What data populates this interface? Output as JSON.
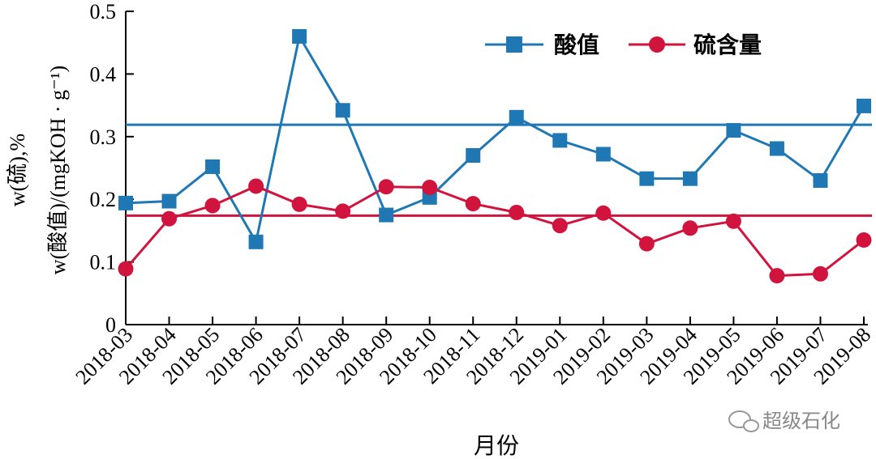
{
  "chart_data": {
    "type": "line",
    "categories": [
      "2018-03",
      "2018-04",
      "2018-05",
      "2018-06",
      "2018-07",
      "2018-08",
      "2018-09",
      "2018-10",
      "2018-11",
      "2018-12",
      "2019-01",
      "2019-02",
      "2019-03",
      "2019-04",
      "2019-05",
      "2019-06",
      "2019-07",
      "2019-08"
    ],
    "series": [
      {
        "name": "酸值",
        "color": "#1f78b4",
        "marker": "square",
        "values": [
          0.194,
          0.197,
          0.252,
          0.132,
          0.46,
          0.342,
          0.175,
          0.203,
          0.27,
          0.331,
          0.294,
          0.272,
          0.233,
          0.233,
          0.31,
          0.281,
          0.23,
          0.349
        ]
      },
      {
        "name": "硫含量",
        "color": "#d1143d",
        "marker": "circle",
        "values": [
          0.089,
          0.169,
          0.19,
          0.221,
          0.192,
          0.181,
          0.22,
          0.219,
          0.193,
          0.179,
          0.158,
          0.178,
          0.129,
          0.154,
          0.165,
          0.078,
          0.081,
          0.135
        ]
      }
    ],
    "reference_lines": [
      {
        "value": 0.319,
        "color": "#1f78b4"
      },
      {
        "value": 0.174,
        "color": "#d1143d"
      }
    ],
    "ylim": [
      0,
      0.5
    ],
    "yticks": [
      "0",
      "0.1",
      "0.2",
      "0.3",
      "0.4",
      "0.5"
    ],
    "xlabel": "月份",
    "ylabel_line1": "w(硫),%",
    "ylabel_line2": "w(酸值)/(mgKOH · g⁻¹)",
    "legend_position": "top-right",
    "grid": false
  },
  "watermark": "超级石化"
}
